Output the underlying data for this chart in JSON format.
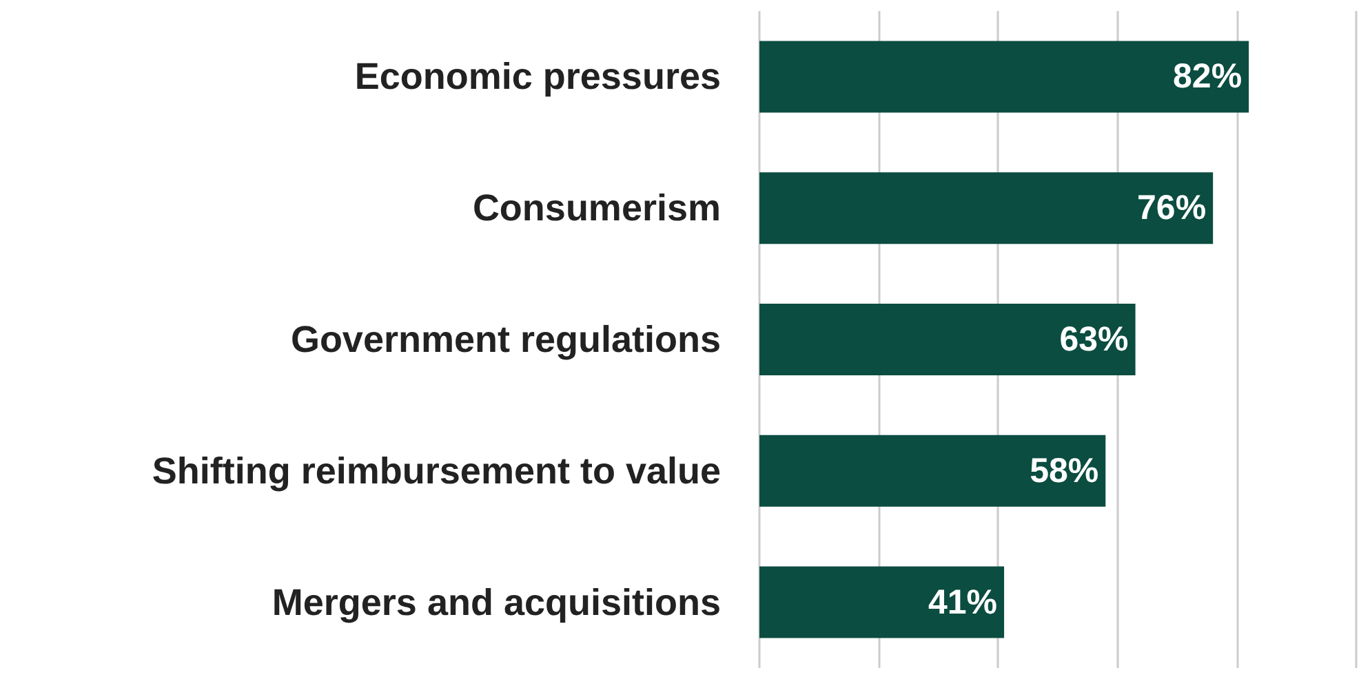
{
  "chart_data": {
    "type": "bar",
    "orientation": "horizontal",
    "categories": [
      "Economic pressures",
      "Consumerism",
      "Government regulations",
      "Shifting reimbursement to value",
      "Mergers and acquisitions"
    ],
    "values": [
      82,
      76,
      63,
      58,
      41
    ],
    "value_labels": [
      "82%",
      "76%",
      "63%",
      "58%",
      "41%"
    ],
    "color": "#0b4d40",
    "xlim": [
      0,
      100
    ],
    "xticks": [
      {
        "value": 0,
        "label": null
      },
      {
        "value": 20,
        "label": null
      },
      {
        "value": 40,
        "label": null
      },
      {
        "value": 60,
        "label": null
      },
      {
        "value": 80,
        "label": null
      },
      {
        "value": 100,
        "label": null
      }
    ],
    "grid": "x",
    "tick_labels": "y"
  }
}
